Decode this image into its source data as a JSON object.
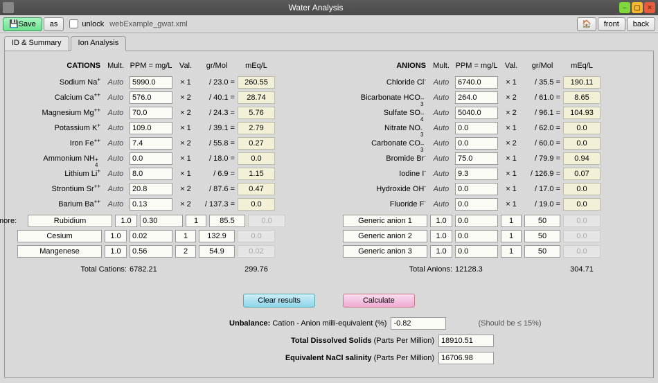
{
  "window": {
    "title": "Water Analysis"
  },
  "toolbar": {
    "save": "Save",
    "as": "as",
    "unlock": "unlock",
    "filename": "webExample_gwat.xml",
    "front": "front",
    "back": "back"
  },
  "tabs": {
    "t1": "ID & Summary",
    "t2": "Ion Analysis"
  },
  "headers": {
    "cations": "CATIONS",
    "anions": "ANIONS",
    "mult": "Mult.",
    "ppm": "PPM = mg/L",
    "val": "Val.",
    "grmol": "gr/Mol",
    "meq": "mEq/L"
  },
  "cations": [
    {
      "name": "Sodium  Na",
      "sup": "+",
      "mult": "Auto",
      "ppm": "5990.0",
      "val": "× 1",
      "grmol": "/ 23.0 =",
      "meq": "260.55"
    },
    {
      "name": "Calcium  Ca",
      "sup": "++",
      "mult": "Auto",
      "ppm": "576.0",
      "val": "× 2",
      "grmol": "/ 40.1 =",
      "meq": "28.74"
    },
    {
      "name": "Magnesium  Mg",
      "sup": "++",
      "mult": "Auto",
      "ppm": "70.0",
      "val": "× 2",
      "grmol": "/ 24.3 =",
      "meq": "5.76"
    },
    {
      "name": "Potassium  K",
      "sup": "+",
      "mult": "Auto",
      "ppm": "109.0",
      "val": "× 1",
      "grmol": "/ 39.1 =",
      "meq": "2.79"
    },
    {
      "name": "Iron  Fe",
      "sup": "++",
      "mult": "Auto",
      "ppm": "7.4",
      "val": "× 2",
      "grmol": "/ 55.8 =",
      "meq": "0.27"
    },
    {
      "name": "Ammonium  NH",
      "sub": "4",
      "sup": "+",
      "mult": "Auto",
      "ppm": "0.0",
      "val": "× 1",
      "grmol": "/ 18.0 =",
      "meq": "0.0"
    },
    {
      "name": "Lithium  Li",
      "sup": "+",
      "mult": "Auto",
      "ppm": "8.0",
      "val": "× 1",
      "grmol": "/ 6.9 =",
      "meq": "1.15"
    },
    {
      "name": "Strontium  Sr",
      "sup": "++",
      "mult": "Auto",
      "ppm": "20.8",
      "val": "× 2",
      "grmol": "/ 87.6 =",
      "meq": "0.47"
    },
    {
      "name": "Barium  Ba",
      "sup": "++",
      "mult": "Auto",
      "ppm": "0.13",
      "val": "× 2",
      "grmol": "/ 137.3 =",
      "meq": "0.0"
    }
  ],
  "cations_extra": [
    {
      "name": "Rubidium",
      "mult": "1.0",
      "ppm": "0.30",
      "val": "1",
      "grmol": "85.5",
      "meq": "0.0"
    },
    {
      "name": "Cesium",
      "mult": "1.0",
      "ppm": "0.02",
      "val": "1",
      "grmol": "132.9",
      "meq": "0.0"
    },
    {
      "name": "Mangenese",
      "mult": "1.0",
      "ppm": "0.56",
      "val": "2",
      "grmol": "54.9",
      "meq": "0.02"
    }
  ],
  "anions": [
    {
      "name": "Chloride  Cl",
      "sup": "-",
      "mult": "Auto",
      "ppm": "6740.0",
      "val": "× 1",
      "grmol": "/ 35.5 =",
      "meq": "190.11"
    },
    {
      "name": "Bicarbonate  HCO",
      "sub": "3",
      "sup": "--",
      "mult": "Auto",
      "ppm": "264.0",
      "val": "× 2",
      "grmol": "/ 61.0 =",
      "meq": "8.65"
    },
    {
      "name": "Sulfate  SO",
      "sub": "4",
      "sup": "--",
      "mult": "Auto",
      "ppm": "5040.0",
      "val": "× 2",
      "grmol": "/ 96.1 =",
      "meq": "104.93"
    },
    {
      "name": "Nitrate  NO",
      "sub": "3",
      "sup": "-",
      "mult": "Auto",
      "ppm": "0.0",
      "val": "× 1",
      "grmol": "/ 62.0 =",
      "meq": "0.0"
    },
    {
      "name": "Carbonate  CO",
      "sub": "3",
      "sup": "--",
      "mult": "Auto",
      "ppm": "0.0",
      "val": "× 2",
      "grmol": "/ 60.0 =",
      "meq": "0.0"
    },
    {
      "name": "Bromide  Br",
      "sup": "-",
      "mult": "Auto",
      "ppm": "75.0",
      "val": "× 1",
      "grmol": "/ 79.9 =",
      "meq": "0.94"
    },
    {
      "name": "Iodine  I",
      "sup": "-",
      "mult": "Auto",
      "ppm": "9.3",
      "val": "× 1",
      "grmol": "/ 126.9 =",
      "meq": "0.07"
    },
    {
      "name": "Hydroxide  OH",
      "sup": "-",
      "mult": "Auto",
      "ppm": "0.0",
      "val": "× 1",
      "grmol": "/ 17.0 =",
      "meq": "0.0"
    },
    {
      "name": "Fluoride  F",
      "sup": "-",
      "mult": "Auto",
      "ppm": "0.0",
      "val": "× 1",
      "grmol": "/ 19.0 =",
      "meq": "0.0"
    }
  ],
  "anions_extra": [
    {
      "name": "Generic anion 1",
      "mult": "1.0",
      "ppm": "0.0",
      "val": "1",
      "grmol": "50",
      "meq": "0.0"
    },
    {
      "name": "Generic anion 2",
      "mult": "1.0",
      "ppm": "0.0",
      "val": "1",
      "grmol": "50",
      "meq": "0.0"
    },
    {
      "name": "Generic anion 3",
      "mult": "1.0",
      "ppm": "0.0",
      "val": "1",
      "grmol": "50",
      "meq": "0.0"
    }
  ],
  "totals": {
    "cations_lbl": "Total Cations:",
    "cations_ppm": "6782.21",
    "cations_meq": "299.76",
    "anions_lbl": "Total Anions:",
    "anions_ppm": "12128.3",
    "anions_meq": "304.71"
  },
  "more": "more:",
  "buttons": {
    "clear": "Clear results",
    "calc": "Calculate"
  },
  "results": {
    "unbalance_lbl_b": "Unbalance:",
    "unbalance_lbl": " Cation - Anion milli-equivalent (%)",
    "unbalance_val": "-0.82",
    "unbalance_hint": "(Should be ≤ 15%)",
    "tds_lbl_b": "Total Dissolved Solids",
    "tds_lbl": " (Parts Per Million)",
    "tds_val": "18910.51",
    "nacl_lbl_b": "Equivalent NaCl salinity",
    "nacl_lbl": " (Parts Per Million)",
    "nacl_val": "16706.98"
  }
}
